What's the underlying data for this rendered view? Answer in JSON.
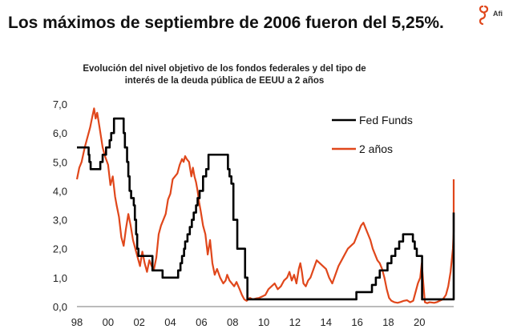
{
  "page": {
    "title": "Los máximos de septiembre de 2006 fueron del 5,25%.",
    "logo_text": "Afi"
  },
  "colors": {
    "fed": "#000000",
    "two_year": "#e0471b",
    "logo": "#e0471b"
  },
  "chart_data": {
    "type": "line",
    "title_lines": [
      "Evolución del nivel objetivo de los fondos federales y del tipo de",
      "interés de la deuda pública de EEUU a 2 años"
    ],
    "xlabel": "",
    "ylabel": "",
    "xlim": [
      1998,
      2022.2
    ],
    "ylim": [
      0,
      7
    ],
    "yticks": [
      0,
      1,
      2,
      3,
      4,
      5,
      6,
      7
    ],
    "ytick_labels": [
      "0,0",
      "1,0",
      "2,0",
      "3,0",
      "4,0",
      "5,0",
      "6,0",
      "7,0"
    ],
    "xticks": [
      1998,
      2000,
      2002,
      2004,
      2006,
      2008,
      2010,
      2012,
      2014,
      2016,
      2018,
      2020
    ],
    "xtick_labels": [
      "98",
      "00",
      "02",
      "04",
      "06",
      "08",
      "10",
      "12",
      "14",
      "16",
      "18",
      "20"
    ],
    "legend_position": "top-right",
    "series": [
      {
        "name": "Fed Funds",
        "style": "step",
        "points": [
          [
            1998.0,
            5.5
          ],
          [
            1998.75,
            5.25
          ],
          [
            1998.8,
            5.0
          ],
          [
            1998.88,
            4.75
          ],
          [
            1999.5,
            5.0
          ],
          [
            1999.65,
            5.25
          ],
          [
            1999.87,
            5.5
          ],
          [
            2000.1,
            5.75
          ],
          [
            2000.2,
            6.0
          ],
          [
            2000.38,
            6.5
          ],
          [
            2001.0,
            6.0
          ],
          [
            2001.08,
            5.5
          ],
          [
            2001.22,
            5.0
          ],
          [
            2001.3,
            4.5
          ],
          [
            2001.38,
            4.0
          ],
          [
            2001.48,
            3.75
          ],
          [
            2001.65,
            3.5
          ],
          [
            2001.72,
            3.0
          ],
          [
            2001.8,
            2.5
          ],
          [
            2001.87,
            2.0
          ],
          [
            2001.95,
            1.75
          ],
          [
            2002.85,
            1.25
          ],
          [
            2003.5,
            1.0
          ],
          [
            2004.5,
            1.25
          ],
          [
            2004.65,
            1.5
          ],
          [
            2004.75,
            1.75
          ],
          [
            2004.88,
            2.0
          ],
          [
            2004.95,
            2.25
          ],
          [
            2005.1,
            2.5
          ],
          [
            2005.25,
            2.75
          ],
          [
            2005.38,
            3.0
          ],
          [
            2005.5,
            3.25
          ],
          [
            2005.65,
            3.5
          ],
          [
            2005.75,
            3.75
          ],
          [
            2005.88,
            4.0
          ],
          [
            2006.1,
            4.5
          ],
          [
            2006.3,
            4.75
          ],
          [
            2006.45,
            5.25
          ],
          [
            2007.7,
            4.75
          ],
          [
            2007.8,
            4.5
          ],
          [
            2007.92,
            4.25
          ],
          [
            2008.05,
            3.0
          ],
          [
            2008.3,
            2.0
          ],
          [
            2008.8,
            1.0
          ],
          [
            2008.95,
            0.25
          ],
          [
            2015.95,
            0.5
          ],
          [
            2016.95,
            0.75
          ],
          [
            2017.2,
            1.0
          ],
          [
            2017.45,
            1.25
          ],
          [
            2017.95,
            1.5
          ],
          [
            2018.2,
            1.75
          ],
          [
            2018.45,
            2.0
          ],
          [
            2018.7,
            2.25
          ],
          [
            2018.95,
            2.5
          ],
          [
            2019.58,
            2.25
          ],
          [
            2019.7,
            2.0
          ],
          [
            2019.83,
            1.75
          ],
          [
            2020.17,
            0.25
          ],
          [
            2022.2,
            0.25
          ],
          [
            2022.22,
            0.5
          ],
          [
            2022.36,
            1.0
          ],
          [
            2022.45,
            1.75
          ],
          [
            2022.57,
            2.5
          ],
          [
            2022.7,
            3.25
          ]
        ]
      },
      {
        "name": "2 años",
        "style": "line",
        "points": [
          [
            1998.0,
            4.4
          ],
          [
            1998.15,
            4.8
          ],
          [
            1998.3,
            5.0
          ],
          [
            1998.5,
            5.5
          ],
          [
            1998.7,
            5.9
          ],
          [
            1998.85,
            6.2
          ],
          [
            1999.0,
            6.6
          ],
          [
            1999.1,
            6.85
          ],
          [
            1999.2,
            6.5
          ],
          [
            1999.3,
            6.7
          ],
          [
            1999.45,
            6.2
          ],
          [
            1999.65,
            5.5
          ],
          [
            1999.8,
            5.2
          ],
          [
            2000.0,
            4.9
          ],
          [
            2000.15,
            4.2
          ],
          [
            2000.3,
            4.5
          ],
          [
            2000.45,
            3.8
          ],
          [
            2000.55,
            3.5
          ],
          [
            2000.7,
            3.1
          ],
          [
            2000.85,
            2.4
          ],
          [
            2001.0,
            2.1
          ],
          [
            2001.15,
            2.7
          ],
          [
            2001.3,
            3.2
          ],
          [
            2001.45,
            2.8
          ],
          [
            2001.6,
            2.3
          ],
          [
            2001.75,
            2.0
          ],
          [
            2001.9,
            1.7
          ],
          [
            2002.05,
            1.4
          ],
          [
            2002.2,
            1.9
          ],
          [
            2002.35,
            1.5
          ],
          [
            2002.5,
            1.2
          ],
          [
            2002.65,
            1.6
          ],
          [
            2002.8,
            1.4
          ],
          [
            2002.95,
            1.3
          ],
          [
            2003.1,
            1.7
          ],
          [
            2003.25,
            2.5
          ],
          [
            2003.4,
            2.8
          ],
          [
            2003.55,
            3.0
          ],
          [
            2003.7,
            3.2
          ],
          [
            2003.85,
            3.7
          ],
          [
            2004.0,
            3.9
          ],
          [
            2004.15,
            4.4
          ],
          [
            2004.3,
            4.5
          ],
          [
            2004.45,
            4.6
          ],
          [
            2004.6,
            4.9
          ],
          [
            2004.75,
            5.1
          ],
          [
            2004.85,
            5.0
          ],
          [
            2004.95,
            5.2
          ],
          [
            2005.05,
            5.1
          ],
          [
            2005.2,
            5.0
          ],
          [
            2005.35,
            4.5
          ],
          [
            2005.45,
            4.8
          ],
          [
            2005.55,
            4.5
          ],
          [
            2005.65,
            4.3
          ],
          [
            2005.75,
            4.0
          ],
          [
            2005.85,
            3.6
          ],
          [
            2005.95,
            3.3
          ],
          [
            2006.1,
            2.8
          ],
          [
            2006.25,
            2.5
          ],
          [
            2006.4,
            1.8
          ],
          [
            2006.55,
            2.3
          ],
          [
            2006.7,
            1.5
          ],
          [
            2006.85,
            1.1
          ],
          [
            2007.0,
            1.3
          ],
          [
            2007.2,
            1.0
          ],
          [
            2007.4,
            0.8
          ],
          [
            2007.55,
            0.9
          ],
          [
            2007.65,
            1.1
          ],
          [
            2007.8,
            0.9
          ],
          [
            2007.95,
            0.8
          ],
          [
            2008.1,
            0.7
          ],
          [
            2008.25,
            0.85
          ],
          [
            2008.45,
            0.6
          ],
          [
            2008.6,
            0.4
          ],
          [
            2008.75,
            0.25
          ],
          [
            2008.9,
            0.2
          ],
          [
            2009.1,
            0.3
          ],
          [
            2009.3,
            0.25
          ],
          [
            2009.5,
            0.28
          ],
          [
            2009.7,
            0.3
          ],
          [
            2009.9,
            0.35
          ],
          [
            2010.1,
            0.4
          ],
          [
            2010.3,
            0.6
          ],
          [
            2010.5,
            0.7
          ],
          [
            2010.7,
            0.8
          ],
          [
            2010.9,
            0.6
          ],
          [
            2011.1,
            0.7
          ],
          [
            2011.3,
            0.9
          ],
          [
            2011.5,
            1.0
          ],
          [
            2011.65,
            1.2
          ],
          [
            2011.8,
            0.9
          ],
          [
            2011.95,
            1.1
          ],
          [
            2012.1,
            0.8
          ],
          [
            2012.25,
            1.3
          ],
          [
            2012.35,
            1.5
          ],
          [
            2012.45,
            1.2
          ],
          [
            2012.55,
            0.8
          ],
          [
            2012.7,
            0.7
          ],
          [
            2012.85,
            0.9
          ],
          [
            2013.0,
            1.0
          ],
          [
            2013.2,
            1.3
          ],
          [
            2013.4,
            1.6
          ],
          [
            2013.6,
            1.5
          ],
          [
            2013.8,
            1.4
          ],
          [
            2014.0,
            1.3
          ],
          [
            2014.2,
            1.0
          ],
          [
            2014.4,
            0.8
          ],
          [
            2014.6,
            1.1
          ],
          [
            2014.8,
            1.4
          ],
          [
            2015.0,
            1.6
          ],
          [
            2015.2,
            1.8
          ],
          [
            2015.4,
            2.0
          ],
          [
            2015.6,
            2.1
          ],
          [
            2015.8,
            2.2
          ],
          [
            2015.95,
            2.4
          ],
          [
            2016.1,
            2.6
          ],
          [
            2016.25,
            2.8
          ],
          [
            2016.4,
            2.9
          ],
          [
            2016.55,
            2.7
          ],
          [
            2016.7,
            2.5
          ],
          [
            2016.85,
            2.3
          ],
          [
            2017.0,
            2.0
          ],
          [
            2017.15,
            1.8
          ],
          [
            2017.3,
            1.6
          ],
          [
            2017.45,
            1.5
          ],
          [
            2017.6,
            1.3
          ],
          [
            2017.75,
            1.0
          ],
          [
            2017.9,
            0.6
          ],
          [
            2018.05,
            0.3
          ],
          [
            2018.2,
            0.2
          ],
          [
            2018.4,
            0.15
          ],
          [
            2018.6,
            0.13
          ],
          [
            2018.8,
            0.16
          ],
          [
            2019.0,
            0.2
          ],
          [
            2019.2,
            0.22
          ],
          [
            2019.4,
            0.15
          ],
          [
            2019.6,
            0.2
          ],
          [
            2019.75,
            0.5
          ],
          [
            2019.9,
            0.8
          ],
          [
            2020.05,
            1.0
          ],
          [
            2020.15,
            1.5
          ],
          [
            2020.25,
            0.8
          ],
          [
            2020.35,
            0.15
          ],
          [
            2020.5,
            0.12
          ],
          [
            2020.65,
            0.15
          ],
          [
            2020.8,
            0.14
          ],
          [
            2020.95,
            0.13
          ],
          [
            2021.1,
            0.15
          ],
          [
            2021.3,
            0.2
          ],
          [
            2021.5,
            0.25
          ],
          [
            2021.7,
            0.4
          ],
          [
            2021.85,
            0.7
          ],
          [
            2022.0,
            1.2
          ],
          [
            2022.15,
            2.0
          ],
          [
            2022.3,
            2.6
          ],
          [
            2022.45,
            3.2
          ],
          [
            2022.55,
            3.0
          ],
          [
            2022.65,
            3.5
          ],
          [
            2022.75,
            4.3
          ],
          [
            2022.85,
            4.4
          ]
        ]
      }
    ]
  }
}
